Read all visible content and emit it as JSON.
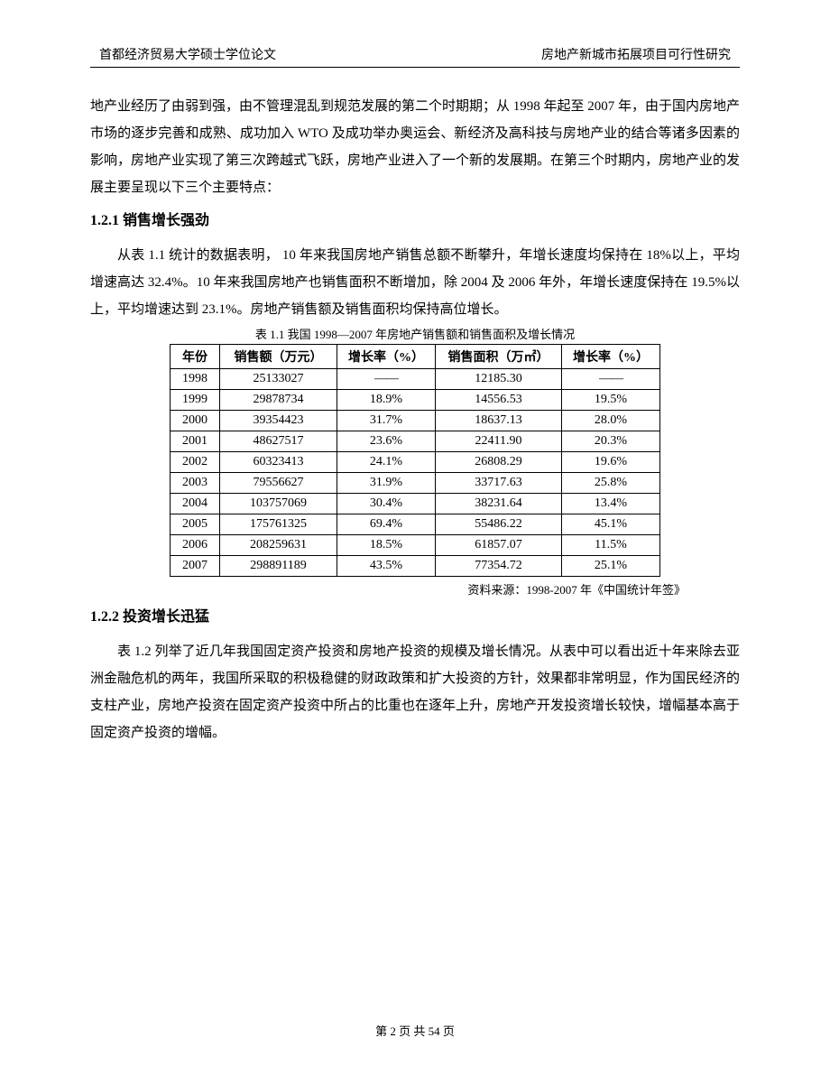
{
  "header": {
    "left": "首都经济贸易大学硕士学位论文",
    "right": "房地产新城市拓展项目可行性研究"
  },
  "intro_para": "地产业经历了由弱到强，由不管理混乱到规范发展的第二个时期期；从 1998 年起至 2007 年，由于国内房地产市场的逐步完善和成熟、成功加入 WTO 及成功举办奥运会、新经济及高科技与房地产业的结合等诸多因素的影响，房地产业实现了第三次跨越式飞跃，房地产业进入了一个新的发展期。在第三个时期内，房地产业的发展主要呈现以下三个主要特点：",
  "sec121": {
    "heading": "1.2.1  销售增长强劲",
    "para": "从表 1.1 统计的数据表明， 10 年来我国房地产销售总额不断攀升，年增长速度均保持在 18%以上，平均增速高达 32.4%。10 年来我国房地产也销售面积不断增加，除 2004 及 2006 年外，年增长速度保持在 19.5%以上，平均增速达到 23.1%。房地产销售额及销售面积均保持高位增长。"
  },
  "table1": {
    "caption": "表 1.1  我国 1998—2007 年房地产销售额和销售面积及增长情况",
    "columns": [
      "年份",
      "销售额（万元）",
      "增长率（%）",
      "销售面积（万㎡）",
      "增长率（%）"
    ],
    "rows": [
      [
        "1998",
        "25133027",
        "——",
        "12185.30",
        "——"
      ],
      [
        "1999",
        "29878734",
        "18.9%",
        "14556.53",
        "19.5%"
      ],
      [
        "2000",
        "39354423",
        "31.7%",
        "18637.13",
        "28.0%"
      ],
      [
        "2001",
        "48627517",
        "23.6%",
        "22411.90",
        "20.3%"
      ],
      [
        "2002",
        "60323413",
        "24.1%",
        "26808.29",
        "19.6%"
      ],
      [
        "2003",
        "79556627",
        "31.9%",
        "33717.63",
        "25.8%"
      ],
      [
        "2004",
        "103757069",
        "30.4%",
        "38231.64",
        "13.4%"
      ],
      [
        "2005",
        "175761325",
        "69.4%",
        "55486.22",
        "45.1%"
      ],
      [
        "2006",
        "208259631",
        "18.5%",
        "61857.07",
        "11.5%"
      ],
      [
        "2007",
        "298891189",
        "43.5%",
        "77354.72",
        "25.1%"
      ]
    ],
    "source": "资料来源：1998-2007 年《中国统计年签》"
  },
  "sec122": {
    "heading": "1.2.2  投资增长迅猛",
    "para": "表 1.2 列举了近几年我国固定资产投资和房地产投资的规模及增长情况。从表中可以看出近十年来除去亚洲金融危机的两年，我国所采取的积极稳健的财政政策和扩大投资的方针，效果都非常明显，作为国民经济的支柱产业，房地产投资在固定资产投资中所占的比重也在逐年上升，房地产开发投资增长较快，增幅基本高于固定资产投资的增幅。"
  },
  "footer": {
    "page_label": "第 2 页 共 54 页"
  }
}
